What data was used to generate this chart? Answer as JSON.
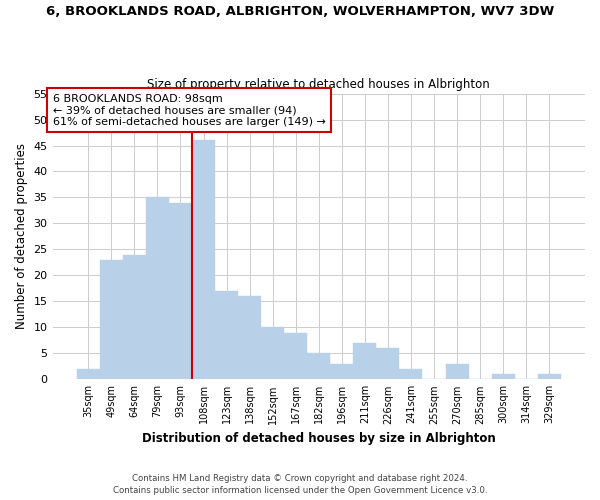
{
  "title": "6, BROOKLANDS ROAD, ALBRIGHTON, WOLVERHAMPTON, WV7 3DW",
  "subtitle": "Size of property relative to detached houses in Albrighton",
  "xlabel": "Distribution of detached houses by size in Albrighton",
  "ylabel": "Number of detached properties",
  "bar_labels": [
    "35sqm",
    "49sqm",
    "64sqm",
    "79sqm",
    "93sqm",
    "108sqm",
    "123sqm",
    "138sqm",
    "152sqm",
    "167sqm",
    "182sqm",
    "196sqm",
    "211sqm",
    "226sqm",
    "241sqm",
    "255sqm",
    "270sqm",
    "285sqm",
    "300sqm",
    "314sqm",
    "329sqm"
  ],
  "bar_values": [
    2,
    23,
    24,
    35,
    34,
    46,
    17,
    16,
    10,
    9,
    5,
    3,
    7,
    6,
    2,
    0,
    3,
    0,
    1,
    0,
    1
  ],
  "bar_color": "#b8d0e8",
  "bar_edge_color": "#b8d0e8",
  "vline_x": 4.5,
  "vline_color": "#cc0000",
  "annotation_title": "6 BROOKLANDS ROAD: 98sqm",
  "annotation_line1": "← 39% of detached houses are smaller (94)",
  "annotation_line2": "61% of semi-detached houses are larger (149) →",
  "annotation_box_color": "#ffffff",
  "annotation_border_color": "#cc0000",
  "ylim": [
    0,
    55
  ],
  "yticks": [
    0,
    5,
    10,
    15,
    20,
    25,
    30,
    35,
    40,
    45,
    50,
    55
  ],
  "footer1": "Contains HM Land Registry data © Crown copyright and database right 2024.",
  "footer2": "Contains public sector information licensed under the Open Government Licence v3.0.",
  "background_color": "#ffffff",
  "grid_color": "#cccccc"
}
